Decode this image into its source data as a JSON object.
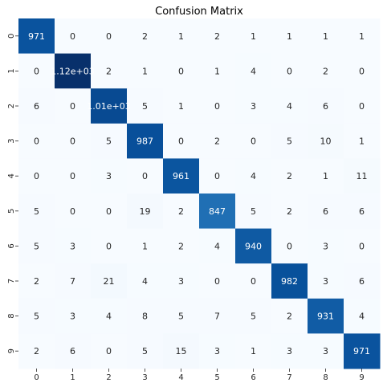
{
  "chart_data": {
    "type": "heatmap",
    "title": "Confusion Matrix",
    "xlabel": "",
    "ylabel": "",
    "x_categories": [
      "0",
      "1",
      "2",
      "3",
      "4",
      "5",
      "6",
      "7",
      "8",
      "9"
    ],
    "y_categories": [
      "0",
      "1",
      "2",
      "3",
      "4",
      "5",
      "6",
      "7",
      "8",
      "9"
    ],
    "values": [
      [
        971,
        0,
        0,
        2,
        1,
        2,
        1,
        1,
        1,
        1
      ],
      [
        0,
        1120,
        2,
        1,
        0,
        1,
        4,
        0,
        2,
        0
      ],
      [
        6,
        0,
        1010,
        5,
        1,
        0,
        3,
        4,
        6,
        0
      ],
      [
        0,
        0,
        5,
        987,
        0,
        2,
        0,
        5,
        10,
        1
      ],
      [
        0,
        0,
        3,
        0,
        961,
        0,
        4,
        2,
        1,
        11
      ],
      [
        5,
        0,
        0,
        19,
        2,
        847,
        5,
        2,
        6,
        6
      ],
      [
        5,
        3,
        0,
        1,
        2,
        4,
        940,
        0,
        3,
        0
      ],
      [
        2,
        7,
        21,
        4,
        3,
        0,
        0,
        982,
        3,
        6
      ],
      [
        5,
        3,
        4,
        8,
        5,
        7,
        5,
        2,
        931,
        4
      ],
      [
        2,
        6,
        0,
        5,
        15,
        3,
        1,
        3,
        3,
        971
      ]
    ],
    "cell_labels": [
      [
        "971",
        "0",
        "0",
        "2",
        "1",
        "2",
        "1",
        "1",
        "1",
        "1"
      ],
      [
        "0",
        "1.12e+03",
        "2",
        "1",
        "0",
        "1",
        "4",
        "0",
        "2",
        "0"
      ],
      [
        "6",
        "0",
        "1.01e+03",
        "5",
        "1",
        "0",
        "3",
        "4",
        "6",
        "0"
      ],
      [
        "0",
        "0",
        "5",
        "987",
        "0",
        "2",
        "0",
        "5",
        "10",
        "1"
      ],
      [
        "0",
        "0",
        "3",
        "0",
        "961",
        "0",
        "4",
        "2",
        "1",
        "11"
      ],
      [
        "5",
        "0",
        "0",
        "19",
        "2",
        "847",
        "5",
        "2",
        "6",
        "6"
      ],
      [
        "5",
        "3",
        "0",
        "1",
        "2",
        "4",
        "940",
        "0",
        "3",
        "0"
      ],
      [
        "2",
        "7",
        "21",
        "4",
        "3",
        "0",
        "0",
        "982",
        "3",
        "6"
      ],
      [
        "5",
        "3",
        "4",
        "8",
        "5",
        "7",
        "5",
        "2",
        "931",
        "4"
      ],
      [
        "2",
        "6",
        "0",
        "5",
        "15",
        "3",
        "1",
        "3",
        "3",
        "971"
      ]
    ],
    "colormap": "Blues",
    "color_low": "#f7fbff",
    "color_high": "#08306b",
    "colorbar": false,
    "grid": false
  }
}
